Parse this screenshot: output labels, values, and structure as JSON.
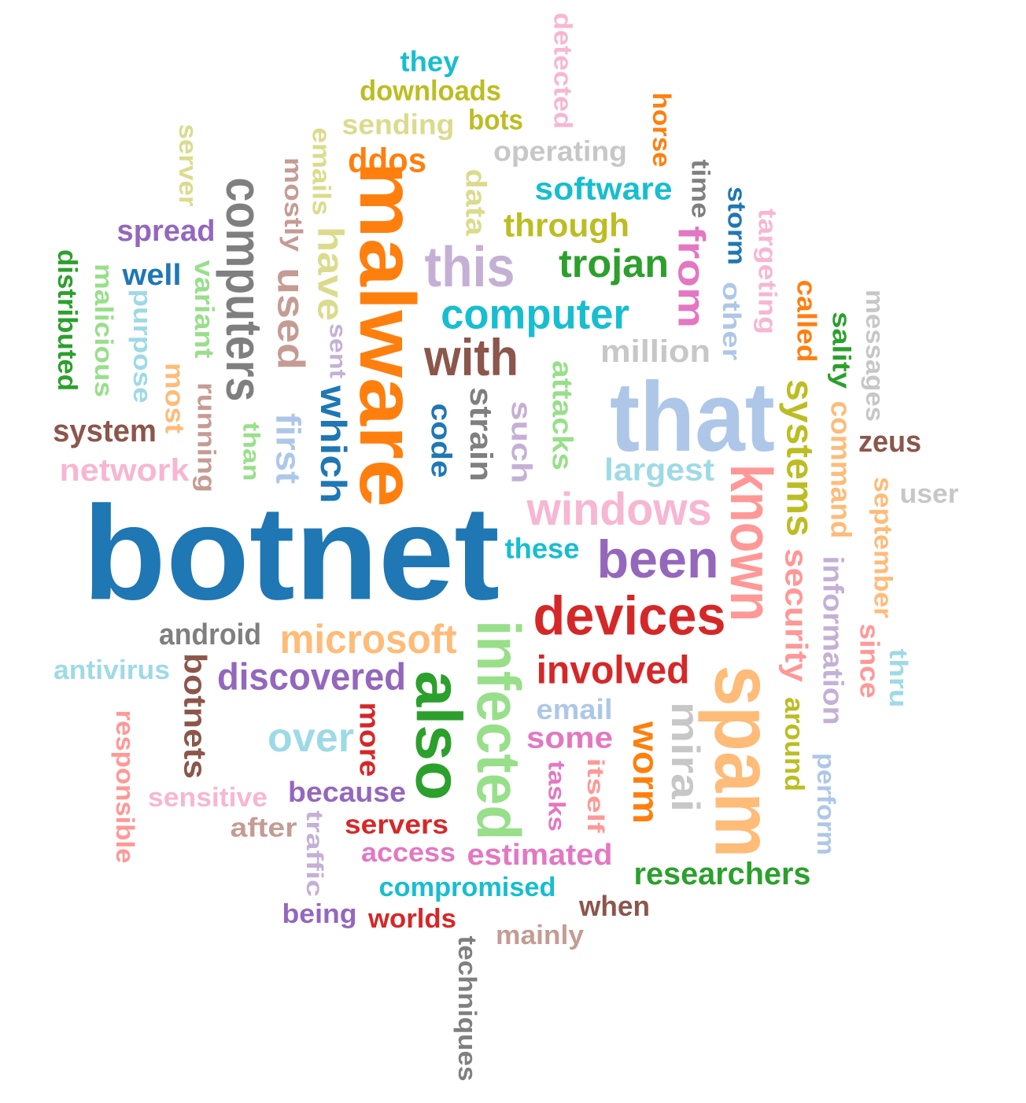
{
  "words": [
    {
      "text": "botnet",
      "color": "#1f77b4"
    },
    {
      "text": "malware",
      "color": "#ff7f0e"
    },
    {
      "text": "that",
      "color": "#aec7e8"
    },
    {
      "text": "spam",
      "color": "#ffbb78"
    },
    {
      "text": "known",
      "color": "#ff9896"
    },
    {
      "text": "infected",
      "color": "#98df8a"
    },
    {
      "text": "also",
      "color": "#2ca02c"
    },
    {
      "text": "devices",
      "color": "#d62728"
    },
    {
      "text": "computers",
      "color": "#7f7f7f"
    },
    {
      "text": "this",
      "color": "#c5b0d5"
    },
    {
      "text": "been",
      "color": "#9467bd"
    },
    {
      "text": "with",
      "color": "#8c564b"
    },
    {
      "text": "windows",
      "color": "#f7b6d2"
    },
    {
      "text": "computer",
      "color": "#17becf"
    },
    {
      "text": "systems",
      "color": "#bcbd22"
    },
    {
      "text": "microsoft",
      "color": "#ffbb78"
    },
    {
      "text": "discovered",
      "color": "#9467bd"
    },
    {
      "text": "involved",
      "color": "#d62728"
    },
    {
      "text": "mirai",
      "color": "#c7c7c7"
    },
    {
      "text": "used",
      "color": "#c49c94"
    },
    {
      "text": "from",
      "color": "#e377c2"
    },
    {
      "text": "trojan",
      "color": "#2ca02c"
    },
    {
      "text": "which",
      "color": "#1f77b4"
    },
    {
      "text": "over",
      "color": "#9edae5"
    },
    {
      "text": "have",
      "color": "#dbdb8d"
    },
    {
      "text": "worm",
      "color": "#ff7f0e"
    },
    {
      "text": "through",
      "color": "#bcbd22"
    },
    {
      "text": "security",
      "color": "#ff9896"
    },
    {
      "text": "software",
      "color": "#17becf"
    },
    {
      "text": "million",
      "color": "#c7c7c7"
    },
    {
      "text": "largest",
      "color": "#9edae5"
    },
    {
      "text": "information",
      "color": "#c5b0d5"
    },
    {
      "text": "ddos",
      "color": "#ff7f0e"
    },
    {
      "text": "first",
      "color": "#aec7e8"
    },
    {
      "text": "researchers",
      "color": "#2ca02c"
    },
    {
      "text": "command",
      "color": "#ffbb78"
    },
    {
      "text": "network",
      "color": "#f7b6d2"
    },
    {
      "text": "botnets",
      "color": "#8c564b"
    },
    {
      "text": "these",
      "color": "#17becf"
    },
    {
      "text": "strain",
      "color": "#7f7f7f"
    },
    {
      "text": "code",
      "color": "#1f77b4"
    },
    {
      "text": "such",
      "color": "#c5b0d5"
    },
    {
      "text": "some",
      "color": "#e377c2"
    },
    {
      "text": "estimated",
      "color": "#e377c2"
    },
    {
      "text": "compromised",
      "color": "#17becf"
    },
    {
      "text": "android",
      "color": "#7f7f7f"
    },
    {
      "text": "because",
      "color": "#9467bd"
    },
    {
      "text": "email",
      "color": "#aec7e8"
    },
    {
      "text": "sending",
      "color": "#dbdb8d"
    },
    {
      "text": "downloads",
      "color": "#bcbd22"
    },
    {
      "text": "operating",
      "color": "#c7c7c7"
    },
    {
      "text": "system",
      "color": "#8c564b"
    },
    {
      "text": "spread",
      "color": "#9467bd"
    },
    {
      "text": "servers",
      "color": "#d62728"
    },
    {
      "text": "access",
      "color": "#e377c2"
    },
    {
      "text": "september",
      "color": "#ffbb78"
    },
    {
      "text": "around",
      "color": "#bcbd22"
    },
    {
      "text": "antivirus",
      "color": "#9edae5"
    },
    {
      "text": "sensitive",
      "color": "#f7b6d2"
    },
    {
      "text": "responsible",
      "color": "#ff9896"
    },
    {
      "text": "distributed",
      "color": "#2ca02c"
    },
    {
      "text": "malicious",
      "color": "#98df8a"
    },
    {
      "text": "purpose",
      "color": "#9edae5"
    },
    {
      "text": "variant",
      "color": "#98df8a"
    },
    {
      "text": "running",
      "color": "#c49c94"
    },
    {
      "text": "mostly",
      "color": "#c49c94"
    },
    {
      "text": "emails",
      "color": "#dbdb8d"
    },
    {
      "text": "server",
      "color": "#dbdb8d"
    },
    {
      "text": "data",
      "color": "#dbdb8d"
    },
    {
      "text": "detected",
      "color": "#f7b6d2"
    },
    {
      "text": "they",
      "color": "#17becf"
    },
    {
      "text": "bots",
      "color": "#bcbd22"
    },
    {
      "text": "horse",
      "color": "#ff7f0e"
    },
    {
      "text": "time",
      "color": "#7f7f7f"
    },
    {
      "text": "storm",
      "color": "#1f77b4"
    },
    {
      "text": "targeting",
      "color": "#f7b6d2"
    },
    {
      "text": "other",
      "color": "#aec7e8"
    },
    {
      "text": "called",
      "color": "#ff7f0e"
    },
    {
      "text": "sality",
      "color": "#2ca02c"
    },
    {
      "text": "messages",
      "color": "#c7c7c7"
    },
    {
      "text": "zeus",
      "color": "#8c564b"
    },
    {
      "text": "user",
      "color": "#c7c7c7"
    },
    {
      "text": "since",
      "color": "#ff9896"
    },
    {
      "text": "thru",
      "color": "#9edae5"
    },
    {
      "text": "perform",
      "color": "#aec7e8"
    },
    {
      "text": "well",
      "color": "#1f77b4"
    },
    {
      "text": "most",
      "color": "#ffbb78"
    },
    {
      "text": "than",
      "color": "#98df8a"
    },
    {
      "text": "sent",
      "color": "#c5b0d5"
    },
    {
      "text": "attacks",
      "color": "#98df8a"
    },
    {
      "text": "more",
      "color": "#d62728"
    },
    {
      "text": "itself",
      "color": "#ff9896"
    },
    {
      "text": "tasks",
      "color": "#e377c2"
    },
    {
      "text": "after",
      "color": "#c49c94"
    },
    {
      "text": "traffic",
      "color": "#c5b0d5"
    },
    {
      "text": "being",
      "color": "#9467bd"
    },
    {
      "text": "worlds",
      "color": "#d62728"
    },
    {
      "text": "when",
      "color": "#8c564b"
    },
    {
      "text": "mainly",
      "color": "#c49c94"
    },
    {
      "text": "techniques",
      "color": "#7f7f7f"
    }
  ]
}
